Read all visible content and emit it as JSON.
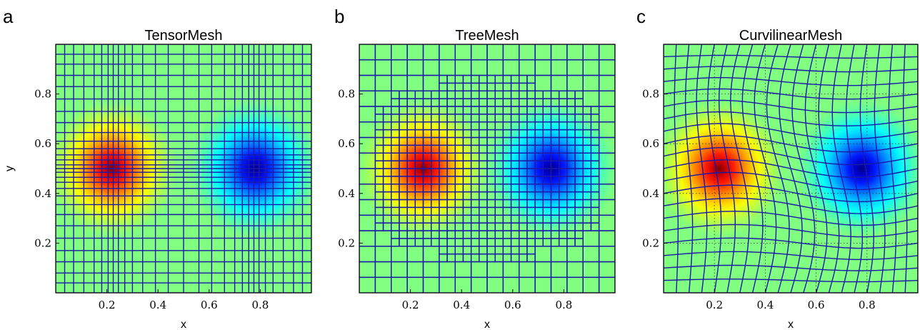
{
  "figure": {
    "panels": [
      {
        "letter": "a",
        "title": "TensorMesh",
        "xlabel": "x",
        "ylabel": "y",
        "mesh": "tensor"
      },
      {
        "letter": "b",
        "title": "TreeMesh",
        "xlabel": "x",
        "ylabel": "",
        "mesh": "tree"
      },
      {
        "letter": "c",
        "title": "CurvilinearMesh",
        "xlabel": "x",
        "ylabel": "",
        "mesh": "curvilinear"
      }
    ]
  },
  "chart_data": [
    {
      "type": "heatmap",
      "title": "TensorMesh",
      "xlabel": "x",
      "ylabel": "y",
      "xlim": [
        0.0,
        1.0
      ],
      "ylim": [
        0.0,
        1.0
      ],
      "xticks": [
        0.2,
        0.4,
        0.6,
        0.8
      ],
      "yticks": [
        0.2,
        0.4,
        0.6,
        0.8
      ],
      "xtick_labels": [
        "0.2",
        "0.4",
        "0.6",
        "0.8"
      ],
      "ytick_labels": [
        "0.2",
        "0.4",
        "0.6",
        "0.8"
      ],
      "sources": [
        {
          "x": 0.22,
          "y": 0.5,
          "sign": 1
        },
        {
          "x": 0.78,
          "y": 0.5,
          "sign": -1
        }
      ],
      "colormap": "jet",
      "mesh_color": "#1a1aa8"
    },
    {
      "type": "heatmap",
      "title": "TreeMesh",
      "xlabel": "x",
      "ylabel": "",
      "xlim": [
        0.0,
        1.0
      ],
      "ylim": [
        0.0,
        1.0
      ],
      "xticks": [
        0.2,
        0.4,
        0.6,
        0.8
      ],
      "yticks": [
        0.2,
        0.4,
        0.6,
        0.8
      ],
      "xtick_labels": [
        "0.2",
        "0.4",
        "0.6",
        "0.8"
      ],
      "ytick_labels": [
        "0.2",
        "0.4",
        "0.6",
        "0.8"
      ],
      "sources": [
        {
          "x": 0.25,
          "y": 0.5,
          "sign": 1
        },
        {
          "x": 0.75,
          "y": 0.5,
          "sign": -1
        }
      ],
      "colormap": "jet",
      "mesh_color": "#1a1aa8"
    },
    {
      "type": "heatmap",
      "title": "CurvilinearMesh",
      "xlabel": "x",
      "ylabel": "",
      "xlim": [
        0.0,
        1.0
      ],
      "ylim": [
        0.0,
        1.0
      ],
      "xticks": [
        0.2,
        0.4,
        0.6,
        0.8
      ],
      "yticks": [
        0.2,
        0.4,
        0.6,
        0.8
      ],
      "xtick_labels": [
        "0.2",
        "0.4",
        "0.6",
        "0.8"
      ],
      "ytick_labels": [
        "0.2",
        "0.4",
        "0.6",
        "0.8"
      ],
      "sources": [
        {
          "x": 0.22,
          "y": 0.5,
          "sign": 1
        },
        {
          "x": 0.78,
          "y": 0.5,
          "sign": -1
        }
      ],
      "colormap": "jet",
      "mesh_color": "#1a1aa8",
      "dotted_guides": true
    }
  ]
}
